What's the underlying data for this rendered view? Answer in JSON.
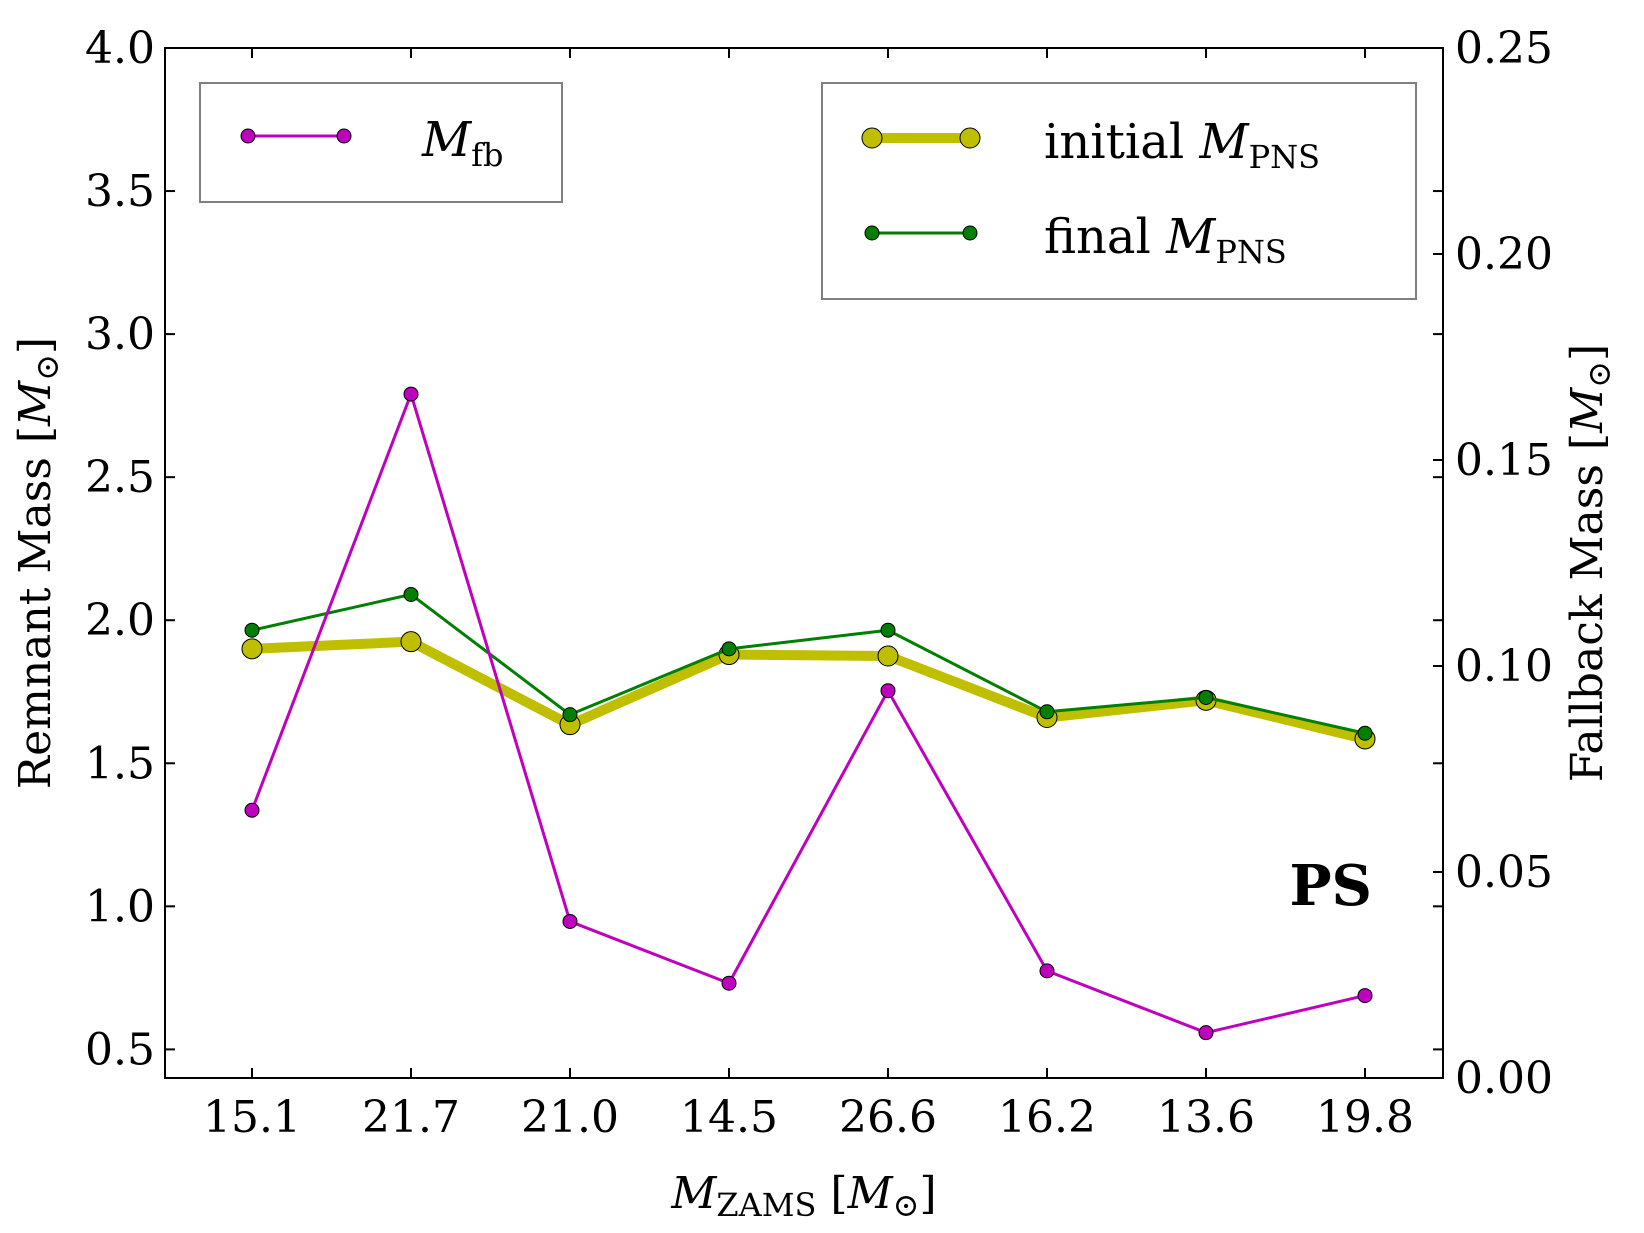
{
  "chart_data": {
    "type": "line",
    "categories": [
      "15.1",
      "21.7",
      "21.0",
      "14.5",
      "26.6",
      "16.2",
      "13.6",
      "19.8"
    ],
    "series": [
      {
        "name": "initial M_PNS",
        "axis": "left",
        "values": [
          1.9,
          1.925,
          1.635,
          1.88,
          1.875,
          1.66,
          1.72,
          1.585
        ],
        "color": "#bfbf00"
      },
      {
        "name": "final M_PNS",
        "axis": "left",
        "values": [
          1.965,
          2.09,
          1.67,
          1.9,
          1.965,
          1.68,
          1.73,
          1.605
        ],
        "color": "#007f00"
      },
      {
        "name": "M_fb",
        "axis": "right",
        "values": [
          0.065,
          0.166,
          0.038,
          0.023,
          0.094,
          0.026,
          0.011,
          0.02
        ],
        "color": "#bf00bf"
      }
    ],
    "ylim_left": [
      0.4,
      4.0
    ],
    "yticks_left": [
      "0.5",
      "1.0",
      "1.5",
      "2.0",
      "2.5",
      "3.0",
      "3.5",
      "4.0"
    ],
    "ylim_right": [
      0.0,
      0.25
    ],
    "yticks_right": [
      "0.00",
      "0.05",
      "0.10",
      "0.15",
      "0.20",
      "0.25"
    ],
    "ylabel_left": {
      "main": "Remnant Mass [",
      "sym": "M",
      "sub": "⊙",
      "close": "]"
    },
    "ylabel_right": {
      "main": "Fallback Mass [",
      "sym": "M",
      "sub": "⊙",
      "close": "]"
    },
    "xlabel": {
      "sym": "M",
      "sub": "ZAMS",
      "rest": " [",
      "sym2": "M",
      "sub2": "⊙",
      "close": "]"
    },
    "legend_left": [
      {
        "sym": "M",
        "sub": "fb",
        "prefix": ""
      }
    ],
    "legend_right": [
      {
        "prefix": "initial ",
        "sym": "M",
        "sub": "PNS"
      },
      {
        "prefix": "final ",
        "sym": "M",
        "sub": "PNS"
      }
    ],
    "annotation": "PS"
  }
}
